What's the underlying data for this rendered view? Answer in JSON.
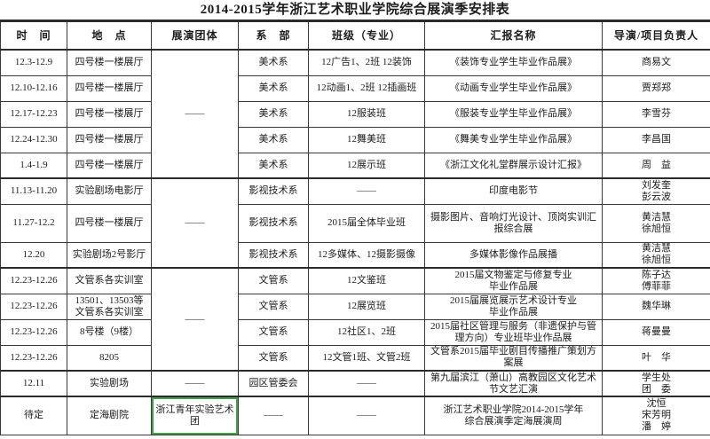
{
  "title": "2014-2015学年浙江艺术职业学院综合展演季安排表",
  "colors": {
    "text": "#1c1c1c",
    "border": "#3a3a3a",
    "border_thick": "#2b2b2b",
    "selection_green": "#43a047",
    "background": "#ffffff"
  },
  "table": {
    "headers": [
      "时　间",
      "地　点",
      "展演团体",
      "系　部",
      "班级（专业）",
      "汇报名称",
      "导演/项目负责人"
    ],
    "rows": [
      [
        {
          "text": "12.3-12.9"
        },
        {
          "text": "四号楼一楼展厅"
        },
        {
          "text": "——",
          "rowspan": 5
        },
        {
          "text": "美术系"
        },
        {
          "text": "12广告1、2班 12装饰"
        },
        {
          "text": "《装饰专业学生毕业作品展》"
        },
        {
          "text": "商易文"
        }
      ],
      [
        {
          "text": "12.10-12.16"
        },
        {
          "text": "四号楼一楼展厅"
        },
        {
          "text": "美术系"
        },
        {
          "text": "12动画1、2班 12插画班"
        },
        {
          "text": "《动画专业学生毕业作品展》"
        },
        {
          "text": "贾郑郑"
        }
      ],
      [
        {
          "text": "12.17-12.23"
        },
        {
          "text": "四号楼一楼展厅"
        },
        {
          "text": "美术系"
        },
        {
          "text": "12服装班"
        },
        {
          "text": "《服装专业学生毕业作品展》"
        },
        {
          "text": "李雪芬"
        }
      ],
      [
        {
          "text": "12.24-12.30"
        },
        {
          "text": "四号楼一楼展厅"
        },
        {
          "text": "美术系"
        },
        {
          "text": "12舞美班"
        },
        {
          "text": "《舞美专业学生毕业作品展》"
        },
        {
          "text": "李昌国"
        }
      ],
      [
        {
          "text": "1.4-1.9"
        },
        {
          "text": "四号楼一楼展厅"
        },
        {
          "text": "美术系"
        },
        {
          "text": "12展示班"
        },
        {
          "text": "《浙江文化礼堂群展示设计汇报》"
        },
        {
          "text": "周　益"
        }
      ],
      [
        {
          "text": "11.13-11.20"
        },
        {
          "text": "实验剧场电影厅"
        },
        {
          "text": "——",
          "rowspan": 3
        },
        {
          "text": "影视技术系"
        },
        {
          "text": "——"
        },
        {
          "text": "印度电影节"
        },
        {
          "text": "刘发奎\n彭云波"
        }
      ],
      [
        {
          "text": "11.27-12.2"
        },
        {
          "text": "四号楼一楼展厅"
        },
        {
          "text": "影视技术系"
        },
        {
          "text": "2015届全体毕业班"
        },
        {
          "text": "摄影图片、音响灯光设计、顶岗实训汇报综合展"
        },
        {
          "text": "黄洁慧\n徐旭恒"
        }
      ],
      [
        {
          "text": "12.20"
        },
        {
          "text": "实验剧场2号影厅"
        },
        {
          "text": "影视技术系"
        },
        {
          "text": "12多媒体、12摄影摄像"
        },
        {
          "text": "多媒体影像作品展播"
        },
        {
          "text": "黄洁慧\n徐旭恒"
        }
      ],
      [
        {
          "text": "12.23-12.26"
        },
        {
          "text": "文管系各实训室"
        },
        {
          "text": "——",
          "rowspan": 4
        },
        {
          "text": "文管系"
        },
        {
          "text": "12文鉴班"
        },
        {
          "text": "2015届文物鉴定与修复专业\n毕业作品展"
        },
        {
          "text": "陈子达\n傅菲菲"
        }
      ],
      [
        {
          "text": "12.23-12.26"
        },
        {
          "text": "13501、13503等\n文管系各实训室"
        },
        {
          "text": "文管系"
        },
        {
          "text": "12展览班"
        },
        {
          "text": "2015届展览展示艺术设计专业\n毕业作品展"
        },
        {
          "text": "魏华琳"
        }
      ],
      [
        {
          "text": "12.23-12.26"
        },
        {
          "text": "8号楼（9楼）"
        },
        {
          "text": "文管系"
        },
        {
          "text": "12社区1、2班"
        },
        {
          "text": "2015届社区管理与服务（非遗保护与管理方向）专业班毕业作品展"
        },
        {
          "text": "蒋曼曼"
        }
      ],
      [
        {
          "text": "12.23-12.26"
        },
        {
          "text": "8205"
        },
        {
          "text": "文管系"
        },
        {
          "text": "12文管1班、文管2班"
        },
        {
          "text": "文管系2015届毕业剧目传播推广策划方案展"
        },
        {
          "text": "叶　华"
        }
      ],
      [
        {
          "text": "12.11"
        },
        {
          "text": "实验剧场"
        },
        {
          "text": "——"
        },
        {
          "text": "园区管委会"
        },
        {
          "text": "——"
        },
        {
          "text": "第九届滨江（萧山）高教园区文化艺术节文艺汇演"
        },
        {
          "text": "学生处\n团　委"
        }
      ],
      [
        {
          "text": "待定"
        },
        {
          "text": "定海剧院"
        },
        {
          "text": "浙江青年实验艺术团",
          "selected": true
        },
        {
          "text": "——"
        },
        {
          "text": "——"
        },
        {
          "text": "浙江艺术职业学院2014-2015学年\n综合展演季定海展演周"
        },
        {
          "text": "沈恒\n宋芳明\n潘　婷"
        }
      ]
    ]
  }
}
